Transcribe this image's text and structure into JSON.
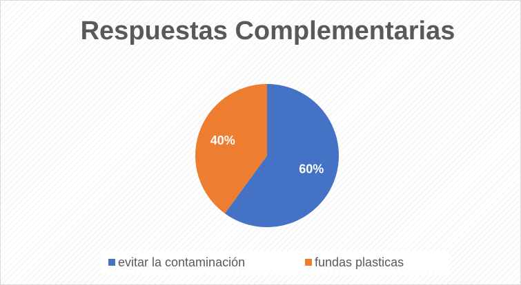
{
  "chart_data": {
    "type": "pie",
    "title": "Respuestas Complementarias",
    "categories": [
      "evitar la contaminación",
      "fundas plasticas"
    ],
    "values": [
      60,
      40
    ],
    "value_labels": [
      "60%",
      "40%"
    ],
    "colors": [
      "#4472c4",
      "#ed7d31"
    ],
    "legend": "bottom"
  }
}
